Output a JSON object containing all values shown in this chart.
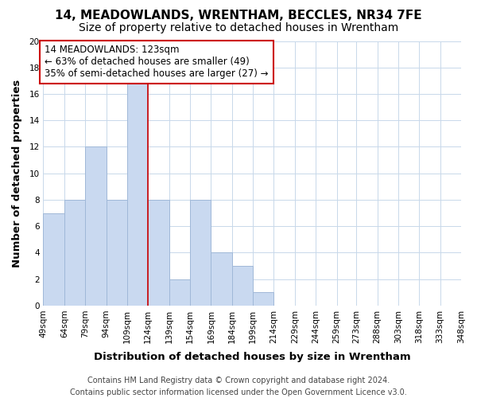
{
  "title": "14, MEADOWLANDS, WRENTHAM, BECCLES, NR34 7FE",
  "subtitle": "Size of property relative to detached houses in Wrentham",
  "xlabel": "Distribution of detached houses by size in Wrentham",
  "ylabel": "Number of detached properties",
  "bar_edges": [
    49,
    64,
    79,
    94,
    109,
    124,
    139,
    154,
    169,
    184,
    199,
    214,
    229,
    244,
    259,
    273,
    288,
    303,
    318,
    333,
    348
  ],
  "bar_heights": [
    7,
    8,
    12,
    8,
    17,
    8,
    2,
    8,
    4,
    3,
    1,
    0,
    0,
    0,
    0,
    0,
    0,
    0,
    0,
    0
  ],
  "bar_color": "#c9d9f0",
  "bar_edge_color": "#a0b8d8",
  "property_line_x": 124,
  "property_line_color": "#cc0000",
  "annotation_line1": "14 MEADOWLANDS: 123sqm",
  "annotation_line2": "← 63% of detached houses are smaller (49)",
  "annotation_line3": "35% of semi-detached houses are larger (27) →",
  "annotation_box_color": "#ffffff",
  "annotation_box_edge": "#cc0000",
  "ylim": [
    0,
    20
  ],
  "yticks": [
    0,
    2,
    4,
    6,
    8,
    10,
    12,
    14,
    16,
    18,
    20
  ],
  "tick_labels": [
    "49sqm",
    "64sqm",
    "79sqm",
    "94sqm",
    "109sqm",
    "124sqm",
    "139sqm",
    "154sqm",
    "169sqm",
    "184sqm",
    "199sqm",
    "214sqm",
    "229sqm",
    "244sqm",
    "259sqm",
    "273sqm",
    "288sqm",
    "303sqm",
    "318sqm",
    "333sqm",
    "348sqm"
  ],
  "footer_text": "Contains HM Land Registry data © Crown copyright and database right 2024.\nContains public sector information licensed under the Open Government Licence v3.0.",
  "background_color": "#ffffff",
  "grid_color": "#c8d8ea",
  "title_fontsize": 11,
  "subtitle_fontsize": 10,
  "axis_label_fontsize": 9.5,
  "tick_fontsize": 7.5,
  "annotation_fontsize": 8.5,
  "footer_fontsize": 7
}
